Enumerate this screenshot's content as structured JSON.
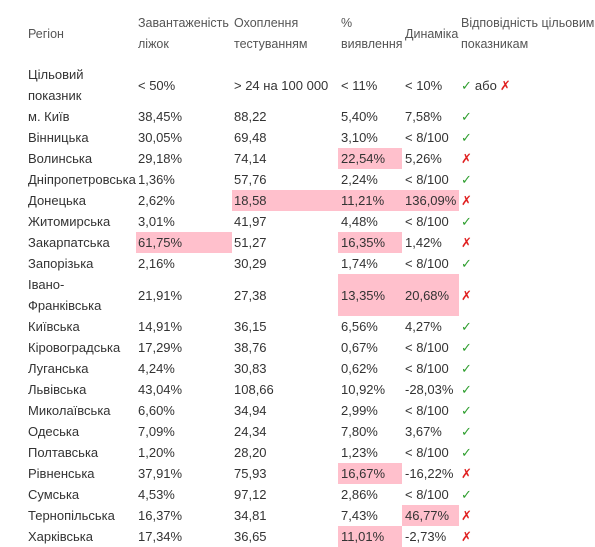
{
  "headers": {
    "region": "Регіон",
    "beds": "Завантаженість ліжок",
    "testing": "Охоплення тестуванням",
    "detection": "% виявлення",
    "dynamics": "Динаміка",
    "compliance": "Відповідність цільовим показникам"
  },
  "target_row": {
    "label": "Цільовий показник",
    "beds": "< 50%",
    "testing": "> 24 на 100 000",
    "detection": "< 11%",
    "dynamics": "< 10%",
    "or_text": "або"
  },
  "colors": {
    "highlight": "#ffc0cc",
    "check": "#2e9e2e",
    "cross": "#e02020"
  },
  "icons": {
    "check": "✓",
    "cross": "✗"
  },
  "rows": [
    {
      "region": "м. Київ",
      "beds": "38,45%",
      "testing": "88,22",
      "detection": "5,40%",
      "dynamics": "7,58%",
      "ok": true,
      "hl": []
    },
    {
      "region": "Вінницька",
      "beds": "30,05%",
      "testing": "69,48",
      "detection": "3,10%",
      "dynamics": "< 8/100",
      "ok": true,
      "hl": []
    },
    {
      "region": "Волинська",
      "beds": "29,18%",
      "testing": "74,14",
      "detection": "22,54%",
      "dynamics": "5,26%",
      "ok": false,
      "hl": [
        "detection"
      ]
    },
    {
      "region": "Дніпропетровська",
      "beds": "1,36%",
      "testing": "57,76",
      "detection": "2,24%",
      "dynamics": "< 8/100",
      "ok": true,
      "hl": []
    },
    {
      "region": "Донецька",
      "beds": "2,62%",
      "testing": "18,58",
      "detection": "11,21%",
      "dynamics": "136,09%",
      "ok": false,
      "hl": [
        "testing",
        "detection",
        "dynamics"
      ]
    },
    {
      "region": "Житомирська",
      "beds": "3,01%",
      "testing": "41,97",
      "detection": "4,48%",
      "dynamics": "< 8/100",
      "ok": true,
      "hl": []
    },
    {
      "region": "Закарпатська",
      "beds": "61,75%",
      "testing": "51,27",
      "detection": "16,35%",
      "dynamics": "1,42%",
      "ok": false,
      "hl": [
        "beds",
        "detection"
      ]
    },
    {
      "region": "Запорізька",
      "beds": "2,16%",
      "testing": "30,29",
      "detection": "1,74%",
      "dynamics": "< 8/100",
      "ok": true,
      "hl": []
    },
    {
      "region": "Івано-Франківська",
      "beds": "21,91%",
      "testing": "27,38",
      "detection": "13,35%",
      "dynamics": "20,68%",
      "ok": false,
      "hl": [
        "detection",
        "dynamics"
      ],
      "tall": true
    },
    {
      "region": "Київська",
      "beds": "14,91%",
      "testing": "36,15",
      "detection": "6,56%",
      "dynamics": "4,27%",
      "ok": true,
      "hl": []
    },
    {
      "region": "Кіровоградська",
      "beds": "17,29%",
      "testing": "38,76",
      "detection": "0,67%",
      "dynamics": "< 8/100",
      "ok": true,
      "hl": []
    },
    {
      "region": "Луганська",
      "beds": "4,24%",
      "testing": "30,83",
      "detection": "0,62%",
      "dynamics": "< 8/100",
      "ok": true,
      "hl": []
    },
    {
      "region": "Львівська",
      "beds": "43,04%",
      "testing": "108,66",
      "detection": "10,92%",
      "dynamics": "-28,03%",
      "ok": true,
      "hl": []
    },
    {
      "region": "Миколаївська",
      "beds": "6,60%",
      "testing": "34,94",
      "detection": "2,99%",
      "dynamics": "< 8/100",
      "ok": true,
      "hl": []
    },
    {
      "region": "Одеська",
      "beds": "7,09%",
      "testing": "24,34",
      "detection": "7,80%",
      "dynamics": "3,67%",
      "ok": true,
      "hl": []
    },
    {
      "region": "Полтавська",
      "beds": "1,20%",
      "testing": "28,20",
      "detection": "1,23%",
      "dynamics": "< 8/100",
      "ok": true,
      "hl": []
    },
    {
      "region": "Рівненська",
      "beds": "37,91%",
      "testing": "75,93",
      "detection": "16,67%",
      "dynamics": "-16,22%",
      "ok": false,
      "hl": [
        "detection"
      ]
    },
    {
      "region": "Сумська",
      "beds": "4,53%",
      "testing": "97,12",
      "detection": "2,86%",
      "dynamics": "< 8/100",
      "ok": true,
      "hl": []
    },
    {
      "region": "Тернопільська",
      "beds": "16,37%",
      "testing": "34,81",
      "detection": "7,43%",
      "dynamics": "46,77%",
      "ok": false,
      "hl": [
        "dynamics"
      ]
    },
    {
      "region": "Харківська",
      "beds": "17,34%",
      "testing": "36,65",
      "detection": "11,01%",
      "dynamics": "-2,73%",
      "ok": false,
      "hl": [
        "detection"
      ]
    }
  ]
}
